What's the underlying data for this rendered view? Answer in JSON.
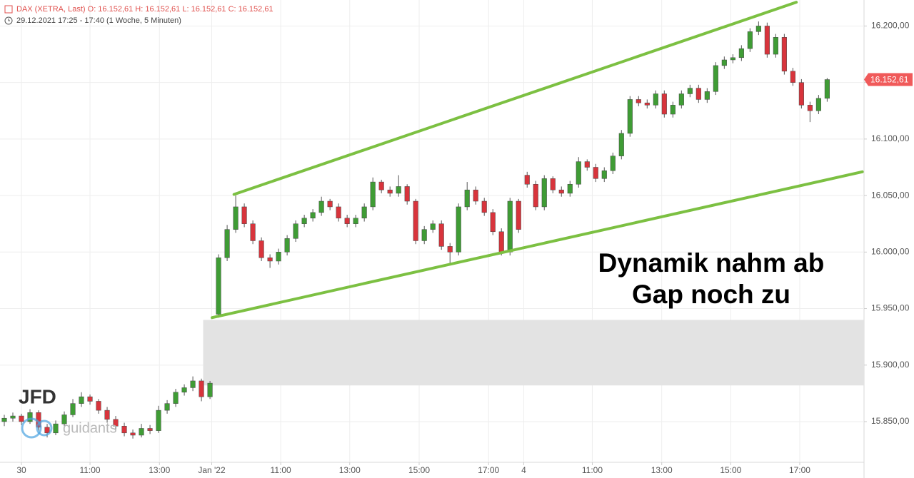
{
  "chart_data": {
    "type": "candlestick",
    "header": "DAX (XETRA, Last)  O: 16.152,61  H: 16.152,61  L: 16.152,61  C: 16.152,61",
    "subheader": "29.12.2021 17:25 - 17:40   (1 Woche, 5 Minuten)",
    "annotation": [
      "Dynamik nahm ab",
      "Gap noch zu"
    ],
    "watermark": [
      "JFD",
      "guidants"
    ],
    "last_price": {
      "value": 16152.61,
      "label": "16.152,61",
      "color": "#f05a5a"
    },
    "up_color": "#3f9c35",
    "down_color": "#d8343c",
    "trend_color": "#7cc042",
    "gap_zone": {
      "from_x": 23.7,
      "low": 15882,
      "high": 15940,
      "color": "#e3e3e3"
    },
    "trendlines": [
      {
        "from": [
          27.3,
          16051
        ],
        "to": [
          92.9,
          16221
        ]
      },
      {
        "from": [
          24.75,
          15942
        ],
        "to": [
          100.6,
          16071
        ]
      }
    ],
    "xlim": [
      0,
      100.8
    ],
    "xticks": [
      {
        "value": 2.5,
        "label": "30"
      },
      {
        "value": 10.5,
        "label": "11:00"
      },
      {
        "value": 18.6,
        "label": "13:00"
      },
      {
        "value": 24.7,
        "label": "Jan '22"
      },
      {
        "value": 32.75,
        "label": "11:00"
      },
      {
        "value": 40.8,
        "label": "13:00"
      },
      {
        "value": 48.9,
        "label": "15:00"
      },
      {
        "value": 57,
        "label": "17:00"
      },
      {
        "value": 61.1,
        "label": "4"
      },
      {
        "value": 69.1,
        "label": "11:00"
      },
      {
        "value": 77.2,
        "label": "13:00"
      },
      {
        "value": 85.25,
        "label": "15:00"
      },
      {
        "value": 93.3,
        "label": "17:00"
      }
    ],
    "ylim": [
      15814,
      16223
    ],
    "yticks": [
      {
        "value": 15850,
        "label": "15.850,00"
      },
      {
        "value": 15900,
        "label": "15.900,00"
      },
      {
        "value": 15950,
        "label": "15.950,00"
      },
      {
        "value": 16000,
        "label": "16.000,00"
      },
      {
        "value": 16050,
        "label": "16.050,00"
      },
      {
        "value": 16100,
        "label": "16.100,00"
      },
      {
        "value": 16150,
        "label": "16.150,00"
      },
      {
        "value": 16200,
        "label": "16.200,00"
      }
    ],
    "grid": true,
    "ohlc": [
      [
        15850,
        15856,
        15846,
        15853
      ],
      [
        15853,
        15858,
        15850,
        15855
      ],
      [
        15855,
        15857,
        15847,
        15850
      ],
      [
        15850,
        15861,
        15848,
        15858
      ],
      [
        15858,
        15860,
        15842,
        15845
      ],
      [
        15845,
        15848,
        15836,
        15840
      ],
      [
        15840,
        15851,
        15838,
        15848
      ],
      [
        15848,
        15859,
        15846,
        15856
      ],
      [
        15856,
        15870,
        15854,
        15866
      ],
      [
        15866,
        15876,
        15863,
        15872
      ],
      [
        15872,
        15874,
        15865,
        15868
      ],
      [
        15868,
        15870,
        15857,
        15860
      ],
      [
        15860,
        15863,
        15849,
        15852
      ],
      [
        15852,
        15855,
        15843,
        15846
      ],
      [
        15846,
        15849,
        15837,
        15840
      ],
      [
        15840,
        15843,
        15835,
        15838
      ],
      [
        15838,
        15848,
        15836,
        15844
      ],
      [
        15844,
        15847,
        15839,
        15842
      ],
      [
        15842,
        15864,
        15840,
        15860
      ],
      [
        15860,
        15869,
        15857,
        15866
      ],
      [
        15866,
        15879,
        15863,
        15876
      ],
      [
        15876,
        15883,
        15873,
        15880
      ],
      [
        15880,
        15890,
        15877,
        15886
      ],
      [
        15886,
        15888,
        15868,
        15872
      ],
      [
        15872,
        15886,
        15870,
        15884
      ],
      [
        15945,
        15998,
        15942,
        15995
      ],
      [
        15995,
        16024,
        15992,
        16020
      ],
      [
        16020,
        16050,
        16017,
        16040
      ],
      [
        16040,
        16043,
        16022,
        16025
      ],
      [
        16025,
        16028,
        16007,
        16010
      ],
      [
        16010,
        16013,
        15992,
        15995
      ],
      [
        15995,
        15998,
        15986,
        15992
      ],
      [
        15992,
        16003,
        15989,
        16000
      ],
      [
        16000,
        16015,
        15997,
        16012
      ],
      [
        16012,
        16028,
        16009,
        16025
      ],
      [
        16025,
        16033,
        16022,
        16030
      ],
      [
        16030,
        16038,
        16027,
        16035
      ],
      [
        16035,
        16049,
        16032,
        16045
      ],
      [
        16045,
        16047,
        16037,
        16040
      ],
      [
        16040,
        16043,
        16027,
        16030
      ],
      [
        16030,
        16033,
        16022,
        16025
      ],
      [
        16025,
        16033,
        16022,
        16030
      ],
      [
        16030,
        16043,
        16027,
        16040
      ],
      [
        16040,
        16066,
        16037,
        16062
      ],
      [
        16062,
        16064,
        16052,
        16055
      ],
      [
        16055,
        16058,
        16049,
        16052
      ],
      [
        16052,
        16068,
        16049,
        16058
      ],
      [
        16058,
        16060,
        16042,
        16045
      ],
      [
        16045,
        16047,
        16007,
        16010
      ],
      [
        16010,
        16023,
        16007,
        16020
      ],
      [
        16020,
        16028,
        16017,
        16025
      ],
      [
        16025,
        16028,
        16002,
        16005
      ],
      [
        16005,
        16008,
        15990,
        16000
      ],
      [
        16000,
        16043,
        15997,
        16040
      ],
      [
        16040,
        16062,
        16037,
        16055
      ],
      [
        16055,
        16058,
        16042,
        16045
      ],
      [
        16045,
        16048,
        16032,
        16035
      ],
      [
        16035,
        16038,
        16015,
        16018
      ],
      [
        16018,
        16021,
        15997,
        16000
      ],
      [
        16000,
        16048,
        15997,
        16045
      ],
      [
        16045,
        16047,
        16017,
        16020
      ],
      [
        16068,
        16071,
        16057,
        16060
      ],
      [
        16060,
        16063,
        16037,
        16040
      ],
      [
        16040,
        16068,
        16037,
        16065
      ],
      [
        16065,
        16067,
        16052,
        16055
      ],
      [
        16055,
        16058,
        16049,
        16052
      ],
      [
        16052,
        16063,
        16049,
        16060
      ],
      [
        16060,
        16084,
        16057,
        16080
      ],
      [
        16080,
        16082,
        16072,
        16075
      ],
      [
        16075,
        16078,
        16062,
        16065
      ],
      [
        16065,
        16075,
        16062,
        16072
      ],
      [
        16072,
        16088,
        16069,
        16085
      ],
      [
        16085,
        16108,
        16082,
        16105
      ],
      [
        16105,
        16138,
        16102,
        16135
      ],
      [
        16135,
        16138,
        16129,
        16132
      ],
      [
        16132,
        16135,
        16127,
        16130
      ],
      [
        16130,
        16143,
        16127,
        16140
      ],
      [
        16140,
        16143,
        16119,
        16122
      ],
      [
        16122,
        16133,
        16119,
        16130
      ],
      [
        16130,
        16143,
        16127,
        16140
      ],
      [
        16140,
        16148,
        16137,
        16145
      ],
      [
        16145,
        16148,
        16132,
        16135
      ],
      [
        16135,
        16145,
        16132,
        16142
      ],
      [
        16142,
        16168,
        16139,
        16165
      ],
      [
        16165,
        16173,
        16162,
        16170
      ],
      [
        16170,
        16175,
        16167,
        16172
      ],
      [
        16172,
        16183,
        16169,
        16180
      ],
      [
        16180,
        16198,
        16177,
        16195
      ],
      [
        16195,
        16204,
        16192,
        16200
      ],
      [
        16200,
        16203,
        16172,
        16175
      ],
      [
        16175,
        16193,
        16172,
        16190
      ],
      [
        16190,
        16193,
        16157,
        16160
      ],
      [
        16160,
        16163,
        16147,
        16150
      ],
      [
        16150,
        16153,
        16127,
        16130
      ],
      [
        16130,
        16133,
        16115,
        16125
      ],
      [
        16125,
        16139,
        16122,
        16136
      ],
      [
        16136,
        16154,
        16133,
        16152.61
      ]
    ]
  }
}
